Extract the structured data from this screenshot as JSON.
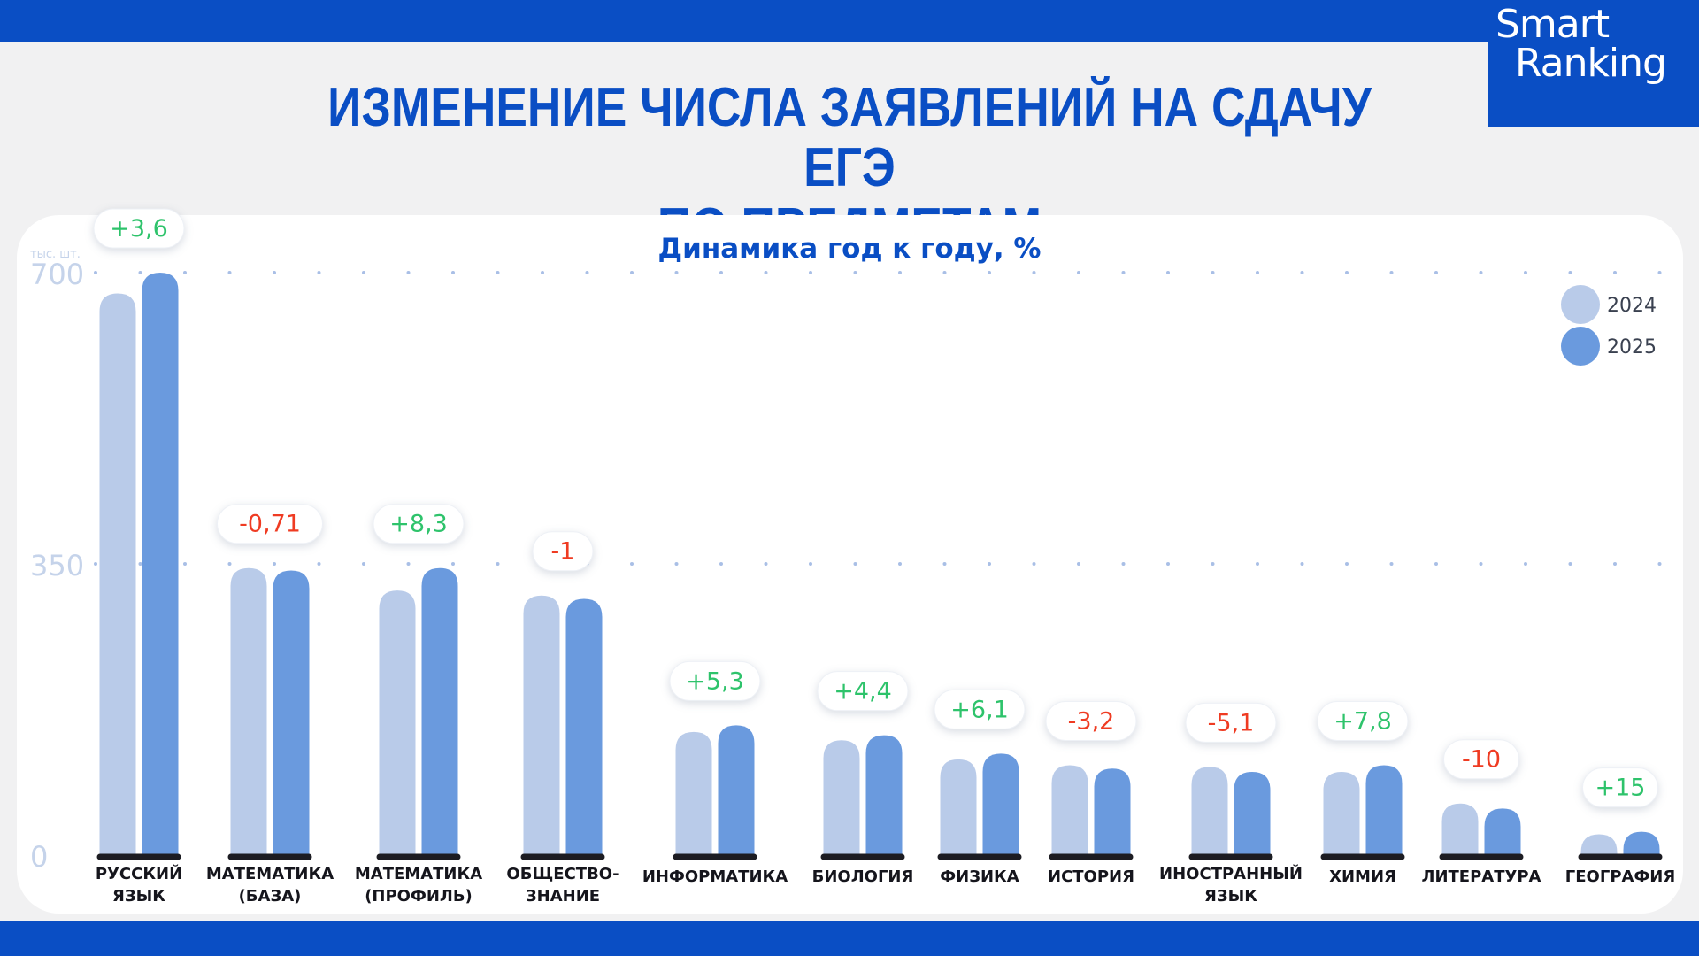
{
  "header": {
    "title_line1": "ИЗМЕНЕНИЕ ЧИСЛА ЗАЯВЛЕНИЙ НА СДАЧУ ЕГЭ",
    "title_line2": "ПО ПРЕДМЕТАМ"
  },
  "logo": {
    "line1": "Smart",
    "line2": "Ranking"
  },
  "colors": {
    "brand": "#0a4ec4",
    "bar_2024": "#b9cbe9",
    "bar_2025": "#6a9ade",
    "positive": "#2ec36b",
    "negative": "#ef3b22",
    "axis_text": "#c5d3ea",
    "base_line": "#1c1c22"
  },
  "chart_data": {
    "type": "bar",
    "subtitle": "Динамика год к году, %",
    "yunit": "тыс. шт.",
    "ylim": [
      0,
      700
    ],
    "yticks": [
      "0",
      "350",
      "700"
    ],
    "grid": "dotted",
    "legend_position": "top-right",
    "categories": [
      [
        "РУССКИЙ",
        "ЯЗЫК"
      ],
      [
        "МАТЕМАТИКА",
        "(БАЗА)"
      ],
      [
        "МАТЕМАТИКА",
        "(ПРОФИЛЬ)"
      ],
      [
        "ОБЩЕСТВО-",
        "ЗНАНИЕ"
      ],
      [
        "ИНФОРМАТИКА"
      ],
      [
        "БИОЛОГИЯ"
      ],
      [
        "ФИЗИКА"
      ],
      [
        "ИСТОРИЯ"
      ],
      [
        "ИНОСТРАННЫЙ",
        "ЯЗЫК"
      ],
      [
        "ХИМИЯ"
      ],
      [
        "ЛИТЕРАТУРА"
      ],
      [
        "ГЕОГРАФИЯ"
      ]
    ],
    "series": [
      {
        "name": "2024",
        "values": [
          675,
          345,
          318,
          312,
          148,
          138,
          115,
          108,
          106,
          100,
          62,
          25
        ]
      },
      {
        "name": "2025",
        "values": [
          700,
          342,
          345,
          308,
          156,
          144,
          122,
          104,
          100,
          108,
          56,
          28
        ]
      }
    ],
    "changes": [
      "+3,6",
      "-0,71",
      "+8,3",
      "-1",
      "+5,3",
      "+4,4",
      "+6,1",
      "-3,2",
      "-5,1",
      "+7,8",
      "-10",
      "+15"
    ]
  }
}
